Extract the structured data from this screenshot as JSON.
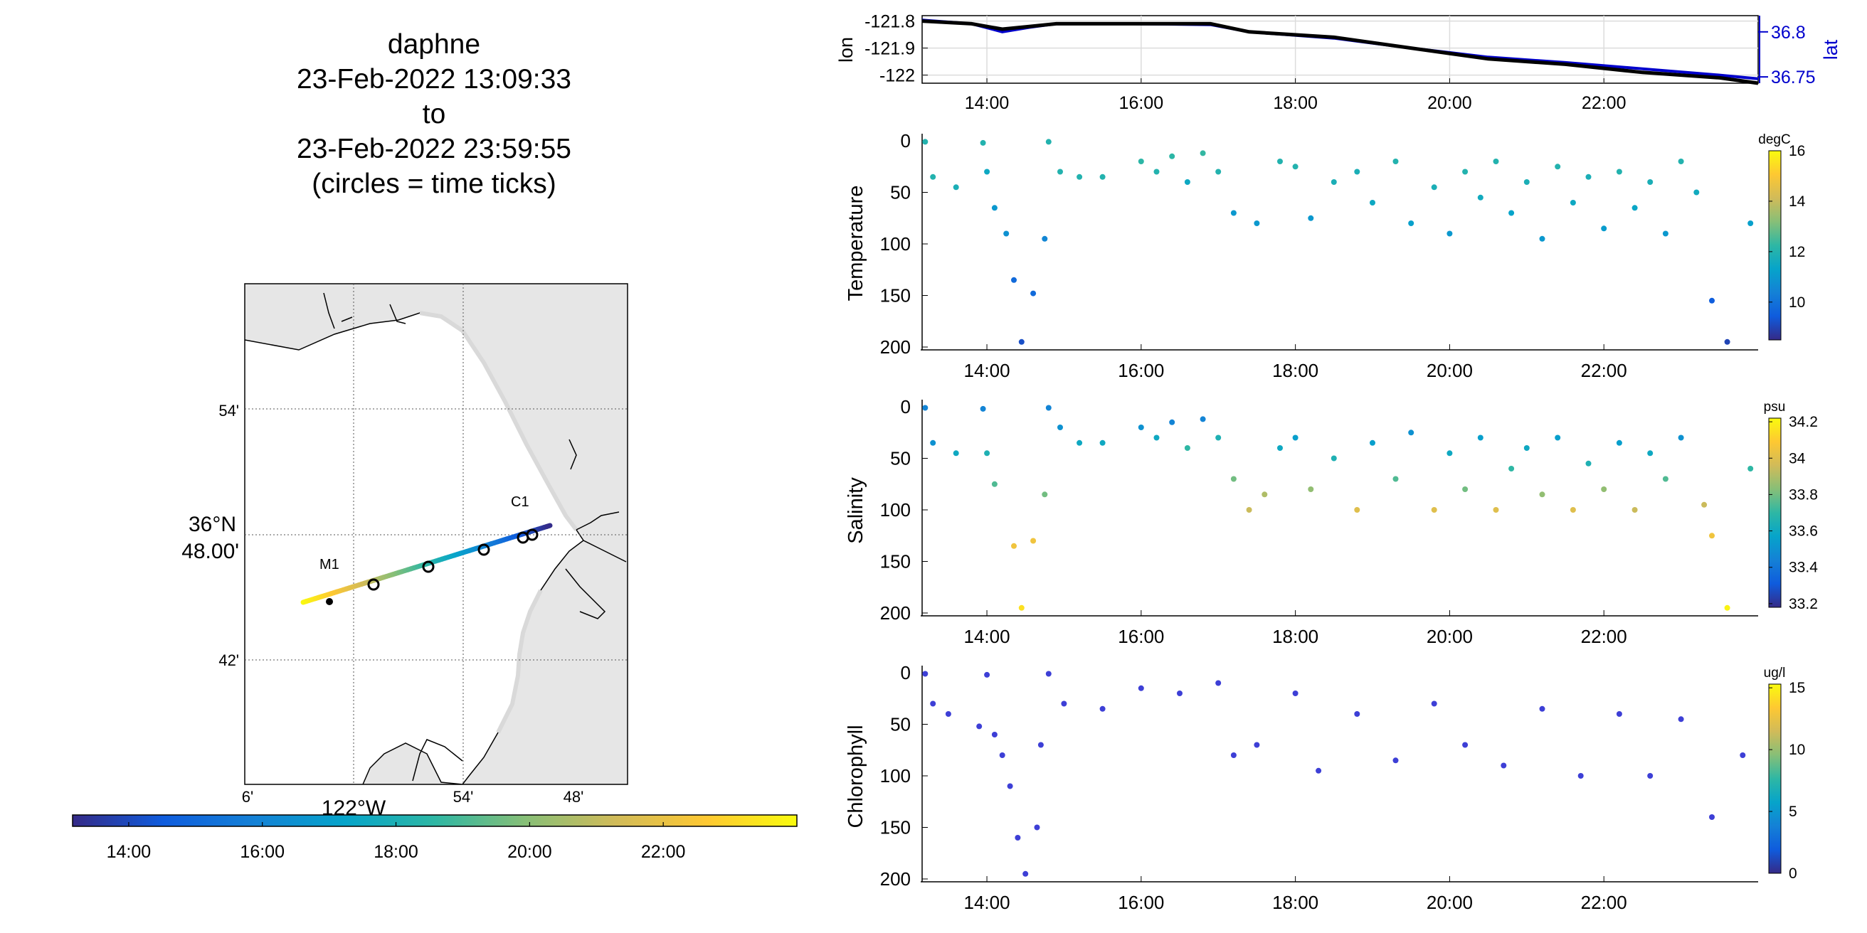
{
  "title": {
    "name": "daphne",
    "start": "23-Feb-2022 13:09:33",
    "to": "to",
    "end": "23-Feb-2022 23:59:55",
    "note": "(circles = time ticks)"
  },
  "colors": {
    "track_series": "#000000",
    "lat_axis": "#0000cc",
    "land": "#e6e6e6",
    "scatter_point_chlorophyll": "#3d3fd6",
    "parula_stops": [
      "#352a87",
      "#0f5cdd",
      "#1481d6",
      "#06a4ca",
      "#2eb7a4",
      "#87bf77",
      "#d1bb59",
      "#fec832",
      "#f9fb0e"
    ]
  },
  "time_ticks": [
    "14:00",
    "16:00",
    "18:00",
    "20:00",
    "22:00"
  ],
  "chart_data": [
    {
      "type": "map",
      "latitude_label": "36°N",
      "latitude_value_label": "48.00'",
      "longitude_label": "122°W",
      "lat_tick_labels": [
        "54'",
        "42'"
      ],
      "lon_tick_labels": [
        "6'",
        "54'",
        "48'"
      ],
      "stations": [
        "M1",
        "C1"
      ],
      "track_color_axis": {
        "ticks": [
          "14:00",
          "16:00",
          "18:00",
          "20:00",
          "22:00"
        ],
        "range": [
          "13:09",
          "23:59"
        ]
      },
      "legend": "colorbar-bottom"
    },
    {
      "type": "line",
      "x_ticks": [
        "14:00",
        "16:00",
        "18:00",
        "20:00",
        "22:00"
      ],
      "xlim": [
        13.16,
        24.0
      ],
      "ylabel": "lon",
      "y_ticks": [
        "-121.8",
        "-121.9",
        "-122"
      ],
      "ylim": [
        -122.03,
        -121.78
      ],
      "y2label": "lat",
      "y2_ticks": [
        "36.8",
        "36.75"
      ],
      "series": [
        {
          "name": "lon",
          "x": [
            13.16,
            13.8,
            14.2,
            14.55,
            14.9,
            15.8,
            16.9,
            17.4,
            18.5,
            19.5,
            20.5,
            21.5,
            22.5,
            23.5,
            24.0
          ],
          "values": [
            -121.8,
            -121.81,
            -121.83,
            -121.82,
            -121.81,
            -121.81,
            -121.81,
            -121.84,
            -121.86,
            -121.9,
            -121.94,
            -121.96,
            -121.99,
            -122.01,
            -122.03
          ]
        },
        {
          "name": "lat",
          "x": [
            13.16,
            13.8,
            14.2,
            14.55,
            14.9,
            15.8,
            16.9,
            17.4,
            18.5,
            19.5,
            20.5,
            21.5,
            22.5,
            23.5,
            24.0
          ],
          "values": [
            36.813,
            36.809,
            36.8,
            36.805,
            36.809,
            36.809,
            36.808,
            36.8,
            36.793,
            36.782,
            36.772,
            36.766,
            36.759,
            36.752,
            36.748
          ]
        }
      ],
      "grid": true
    },
    {
      "type": "scatter",
      "ylabel": "Temperature",
      "y_ticks": [
        "0",
        "50",
        "100",
        "150",
        "200"
      ],
      "ylim": [
        0,
        200
      ],
      "y_reversed": true,
      "x_ticks": [
        "14:00",
        "16:00",
        "18:00",
        "20:00",
        "22:00"
      ],
      "colorbar": {
        "unit": "degC",
        "ticks": [
          "16",
          "14",
          "12",
          "10"
        ],
        "range": [
          8.5,
          16.0
        ]
      },
      "points": [
        [
          13.2,
          1,
          12
        ],
        [
          13.3,
          35,
          12
        ],
        [
          13.6,
          45,
          11.8
        ],
        [
          13.95,
          2,
          12
        ],
        [
          14.0,
          30,
          11.5
        ],
        [
          14.1,
          65,
          11
        ],
        [
          14.25,
          90,
          10.8
        ],
        [
          14.35,
          135,
          9.8
        ],
        [
          14.45,
          195,
          9.2
        ],
        [
          14.6,
          148,
          9.8
        ],
        [
          14.75,
          95,
          10.5
        ],
        [
          14.8,
          1,
          12
        ],
        [
          14.95,
          30,
          12
        ],
        [
          15.2,
          35,
          12
        ],
        [
          15.5,
          35,
          12
        ],
        [
          16.0,
          20,
          12.2
        ],
        [
          16.2,
          30,
          12
        ],
        [
          16.4,
          15,
          12.2
        ],
        [
          16.6,
          40,
          11.5
        ],
        [
          16.8,
          12,
          12.3
        ],
        [
          17.0,
          30,
          12
        ],
        [
          17.2,
          70,
          11
        ],
        [
          17.5,
          80,
          11
        ],
        [
          17.8,
          20,
          12
        ],
        [
          18.0,
          25,
          12
        ],
        [
          18.2,
          75,
          11
        ],
        [
          18.5,
          40,
          11.8
        ],
        [
          18.8,
          30,
          11.8
        ],
        [
          19.0,
          60,
          11.5
        ],
        [
          19.3,
          20,
          12
        ],
        [
          19.5,
          80,
          11.2
        ],
        [
          19.8,
          45,
          11.8
        ],
        [
          20.0,
          90,
          11
        ],
        [
          20.2,
          30,
          12
        ],
        [
          20.4,
          55,
          11.6
        ],
        [
          20.6,
          20,
          12
        ],
        [
          20.8,
          70,
          11.3
        ],
        [
          21.0,
          40,
          11.8
        ],
        [
          21.2,
          95,
          11
        ],
        [
          21.4,
          25,
          12
        ],
        [
          21.6,
          60,
          11.5
        ],
        [
          21.8,
          35,
          11.8
        ],
        [
          22.0,
          85,
          11.1
        ],
        [
          22.2,
          30,
          12
        ],
        [
          22.4,
          65,
          11.4
        ],
        [
          22.6,
          40,
          11.8
        ],
        [
          22.8,
          90,
          11
        ],
        [
          23.0,
          20,
          12
        ],
        [
          23.2,
          50,
          11.6
        ],
        [
          23.4,
          155,
          9.5
        ],
        [
          23.6,
          195,
          9
        ],
        [
          23.9,
          80,
          11.2
        ]
      ]
    },
    {
      "type": "scatter",
      "ylabel": "Salinity",
      "y_ticks": [
        "0",
        "50",
        "100",
        "150",
        "200"
      ],
      "ylim": [
        0,
        200
      ],
      "y_reversed": true,
      "x_ticks": [
        "14:00",
        "16:00",
        "18:00",
        "20:00",
        "22:00"
      ],
      "colorbar": {
        "unit": "psu",
        "ticks": [
          "34.2",
          "34",
          "33.8",
          "33.6",
          "33.4",
          "33.2"
        ],
        "range": [
          33.18,
          34.22
        ]
      },
      "points": [
        [
          13.2,
          1,
          33.45
        ],
        [
          13.3,
          35,
          33.5
        ],
        [
          13.6,
          45,
          33.6
        ],
        [
          13.95,
          2,
          33.45
        ],
        [
          14.0,
          45,
          33.65
        ],
        [
          14.1,
          75,
          33.75
        ],
        [
          14.35,
          135,
          34.05
        ],
        [
          14.45,
          195,
          34.15
        ],
        [
          14.6,
          130,
          34.05
        ],
        [
          14.75,
          85,
          33.8
        ],
        [
          14.8,
          1,
          33.45
        ],
        [
          14.95,
          20,
          33.5
        ],
        [
          15.2,
          35,
          33.6
        ],
        [
          15.5,
          35,
          33.6
        ],
        [
          16.0,
          20,
          33.5
        ],
        [
          16.2,
          30,
          33.6
        ],
        [
          16.4,
          15,
          33.45
        ],
        [
          16.6,
          40,
          33.7
        ],
        [
          16.8,
          12,
          33.45
        ],
        [
          17.0,
          30,
          33.65
        ],
        [
          17.2,
          70,
          33.8
        ],
        [
          17.4,
          100,
          33.95
        ],
        [
          17.6,
          85,
          33.9
        ],
        [
          17.8,
          40,
          33.6
        ],
        [
          18.0,
          30,
          33.55
        ],
        [
          18.2,
          80,
          33.85
        ],
        [
          18.5,
          50,
          33.65
        ],
        [
          18.8,
          100,
          34.0
        ],
        [
          19.0,
          35,
          33.55
        ],
        [
          19.3,
          70,
          33.75
        ],
        [
          19.5,
          25,
          33.5
        ],
        [
          19.8,
          100,
          34.0
        ],
        [
          20.0,
          45,
          33.6
        ],
        [
          20.2,
          80,
          33.8
        ],
        [
          20.4,
          30,
          33.55
        ],
        [
          20.6,
          100,
          34.0
        ],
        [
          20.8,
          60,
          33.7
        ],
        [
          21.0,
          40,
          33.6
        ],
        [
          21.2,
          85,
          33.85
        ],
        [
          21.4,
          30,
          33.55
        ],
        [
          21.6,
          100,
          34.0
        ],
        [
          21.8,
          55,
          33.65
        ],
        [
          22.0,
          80,
          33.85
        ],
        [
          22.2,
          35,
          33.55
        ],
        [
          22.4,
          100,
          33.95
        ],
        [
          22.6,
          45,
          33.6
        ],
        [
          22.8,
          70,
          33.75
        ],
        [
          23.0,
          30,
          33.5
        ],
        [
          23.3,
          95,
          33.95
        ],
        [
          23.4,
          125,
          34.05
        ],
        [
          23.6,
          195,
          34.2
        ],
        [
          23.9,
          60,
          33.7
        ]
      ]
    },
    {
      "type": "scatter",
      "ylabel": "Chlorophyll",
      "y_ticks": [
        "0",
        "50",
        "100",
        "150",
        "200"
      ],
      "ylim": [
        0,
        200
      ],
      "y_reversed": true,
      "x_ticks": [
        "14:00",
        "16:00",
        "18:00",
        "20:00",
        "22:00"
      ],
      "colorbar": {
        "unit": "ug/l",
        "ticks": [
          "15",
          "10",
          "5",
          "0"
        ],
        "range": [
          0,
          15.3
        ]
      },
      "points": [
        [
          13.2,
          1,
          1
        ],
        [
          13.3,
          30,
          1
        ],
        [
          13.5,
          40,
          1
        ],
        [
          13.9,
          52,
          1
        ],
        [
          14.0,
          2,
          1
        ],
        [
          14.1,
          60,
          1
        ],
        [
          14.2,
          80,
          1
        ],
        [
          14.3,
          110,
          1
        ],
        [
          14.4,
          160,
          1
        ],
        [
          14.5,
          195,
          1
        ],
        [
          14.65,
          150,
          1
        ],
        [
          14.7,
          70,
          1
        ],
        [
          14.8,
          1,
          1
        ],
        [
          15.0,
          30,
          1
        ],
        [
          15.5,
          35,
          1
        ],
        [
          16.0,
          15,
          1
        ],
        [
          16.5,
          20,
          1
        ],
        [
          17.0,
          10,
          1
        ],
        [
          17.2,
          80,
          1
        ],
        [
          17.5,
          70,
          1
        ],
        [
          18.0,
          20,
          1
        ],
        [
          18.3,
          95,
          1
        ],
        [
          18.8,
          40,
          1
        ],
        [
          19.3,
          85,
          1
        ],
        [
          19.8,
          30,
          1
        ],
        [
          20.2,
          70,
          1
        ],
        [
          20.7,
          90,
          1
        ],
        [
          21.2,
          35,
          1
        ],
        [
          21.7,
          100,
          1
        ],
        [
          22.2,
          40,
          1
        ],
        [
          22.6,
          100,
          1
        ],
        [
          23.0,
          45,
          1
        ],
        [
          23.4,
          140,
          1
        ],
        [
          23.8,
          80,
          1
        ]
      ]
    }
  ]
}
